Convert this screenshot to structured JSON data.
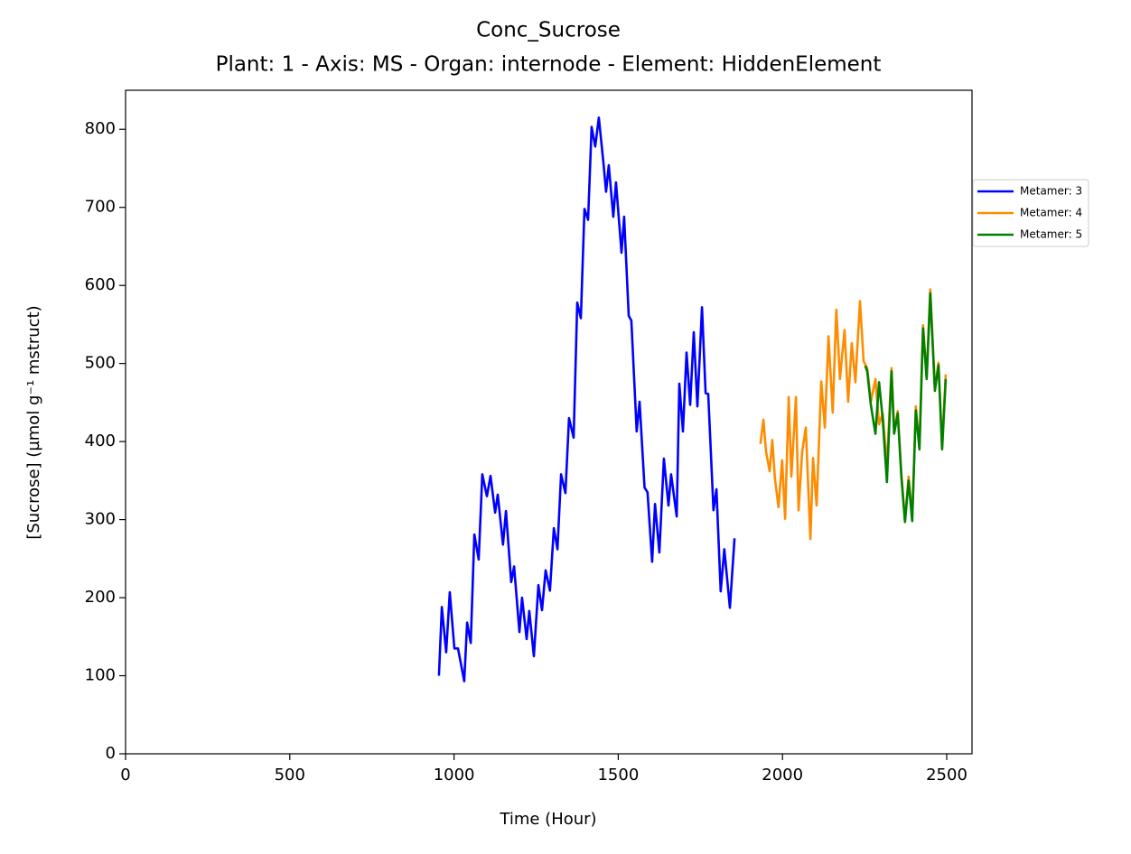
{
  "chart_data": {
    "type": "line",
    "title": "Conc_Sucrose",
    "subtitle": "Plant: 1 - Axis: MS - Organ: internode - Element: HiddenElement",
    "x_label": "Time (Hour)",
    "y_label": "[Sucrose] (µmol g⁻¹ mstruct)",
    "xlim": [
      0,
      2577
    ],
    "ylim": [
      0,
      850
    ],
    "xticks": [
      0,
      500,
      1000,
      1500,
      2000,
      2500
    ],
    "yticks": [
      0,
      100,
      200,
      300,
      400,
      500,
      600,
      700,
      800
    ],
    "grid": false,
    "legend": "outside-right",
    "series": [
      {
        "name": "Metamer: 3",
        "color": "#0000ff",
        "x": [
          954,
          963,
          976,
          987,
          1001,
          1012,
          1031,
          1040,
          1051,
          1062,
          1075,
          1086,
          1100,
          1111,
          1125,
          1133,
          1149,
          1158,
          1174,
          1183,
          1199,
          1207,
          1221,
          1229,
          1243,
          1257,
          1268,
          1279,
          1292,
          1304,
          1315,
          1326,
          1339,
          1350,
          1364,
          1375,
          1386,
          1397,
          1408,
          1419,
          1430,
          1441,
          1455,
          1463,
          1471,
          1485,
          1493,
          1510,
          1518,
          1532,
          1540,
          1556,
          1565,
          1580,
          1589,
          1603,
          1612,
          1625,
          1639,
          1653,
          1661,
          1678,
          1686,
          1697,
          1708,
          1719,
          1730,
          1741,
          1755,
          1766,
          1774,
          1790,
          1799,
          1812,
          1823,
          1840,
          1854
        ],
        "values": [
          100,
          188,
          130,
          207,
          135,
          135,
          93,
          168,
          142,
          281,
          249,
          358,
          330,
          356,
          309,
          332,
          268,
          311,
          220,
          240,
          156,
          200,
          147,
          183,
          125,
          216,
          184,
          235,
          209,
          289,
          262,
          358,
          334,
          430,
          405,
          578,
          558,
          698,
          684,
          803,
          778,
          815,
          757,
          720,
          754,
          688,
          732,
          642,
          688,
          561,
          555,
          413,
          451,
          341,
          335,
          246,
          320,
          258,
          378,
          318,
          358,
          304,
          474,
          413,
          514,
          447,
          540,
          445,
          572,
          462,
          461,
          312,
          339,
          208,
          262,
          187,
          276
        ]
      },
      {
        "name": "Metamer: 4",
        "color": "#ff8c00",
        "x": [
          1933,
          1942,
          1950,
          1961,
          1969,
          1977,
          1988,
          1999,
          2008,
          2019,
          2027,
          2041,
          2049,
          2060,
          2071,
          2085,
          2093,
          2104,
          2118,
          2129,
          2140,
          2153,
          2164,
          2175,
          2189,
          2200,
          2211,
          2222,
          2236,
          2247,
          2258,
          2269,
          2283,
          2294,
          2305,
          2318,
          2332,
          2340,
          2351,
          2362,
          2373,
          2384,
          2395,
          2406,
          2417,
          2428,
          2439,
          2450,
          2464,
          2475,
          2486,
          2497
        ],
        "values": [
          397,
          428,
          387,
          362,
          402,
          353,
          316,
          376,
          301,
          457,
          355,
          457,
          312,
          387,
          418,
          275,
          379,
          318,
          477,
          418,
          535,
          437,
          569,
          480,
          543,
          451,
          526,
          476,
          580,
          503,
          494,
          451,
          480,
          422,
          436,
          368,
          494,
          413,
          439,
          358,
          299,
          355,
          301,
          445,
          393,
          549,
          482,
          595,
          468,
          501,
          393,
          486
        ]
      },
      {
        "name": "Metamer: 5",
        "color": "#008000",
        "x": [
          2252,
          2258,
          2269,
          2283,
          2294,
          2305,
          2318,
          2332,
          2340,
          2351,
          2362,
          2373,
          2384,
          2395,
          2406,
          2417,
          2428,
          2439,
          2450,
          2464,
          2475,
          2486,
          2497
        ],
        "values": [
          497,
          490,
          447,
          410,
          476,
          430,
          348,
          490,
          410,
          436,
          355,
          297,
          350,
          298,
          440,
          390,
          545,
          480,
          590,
          465,
          498,
          390,
          480
        ]
      }
    ]
  }
}
